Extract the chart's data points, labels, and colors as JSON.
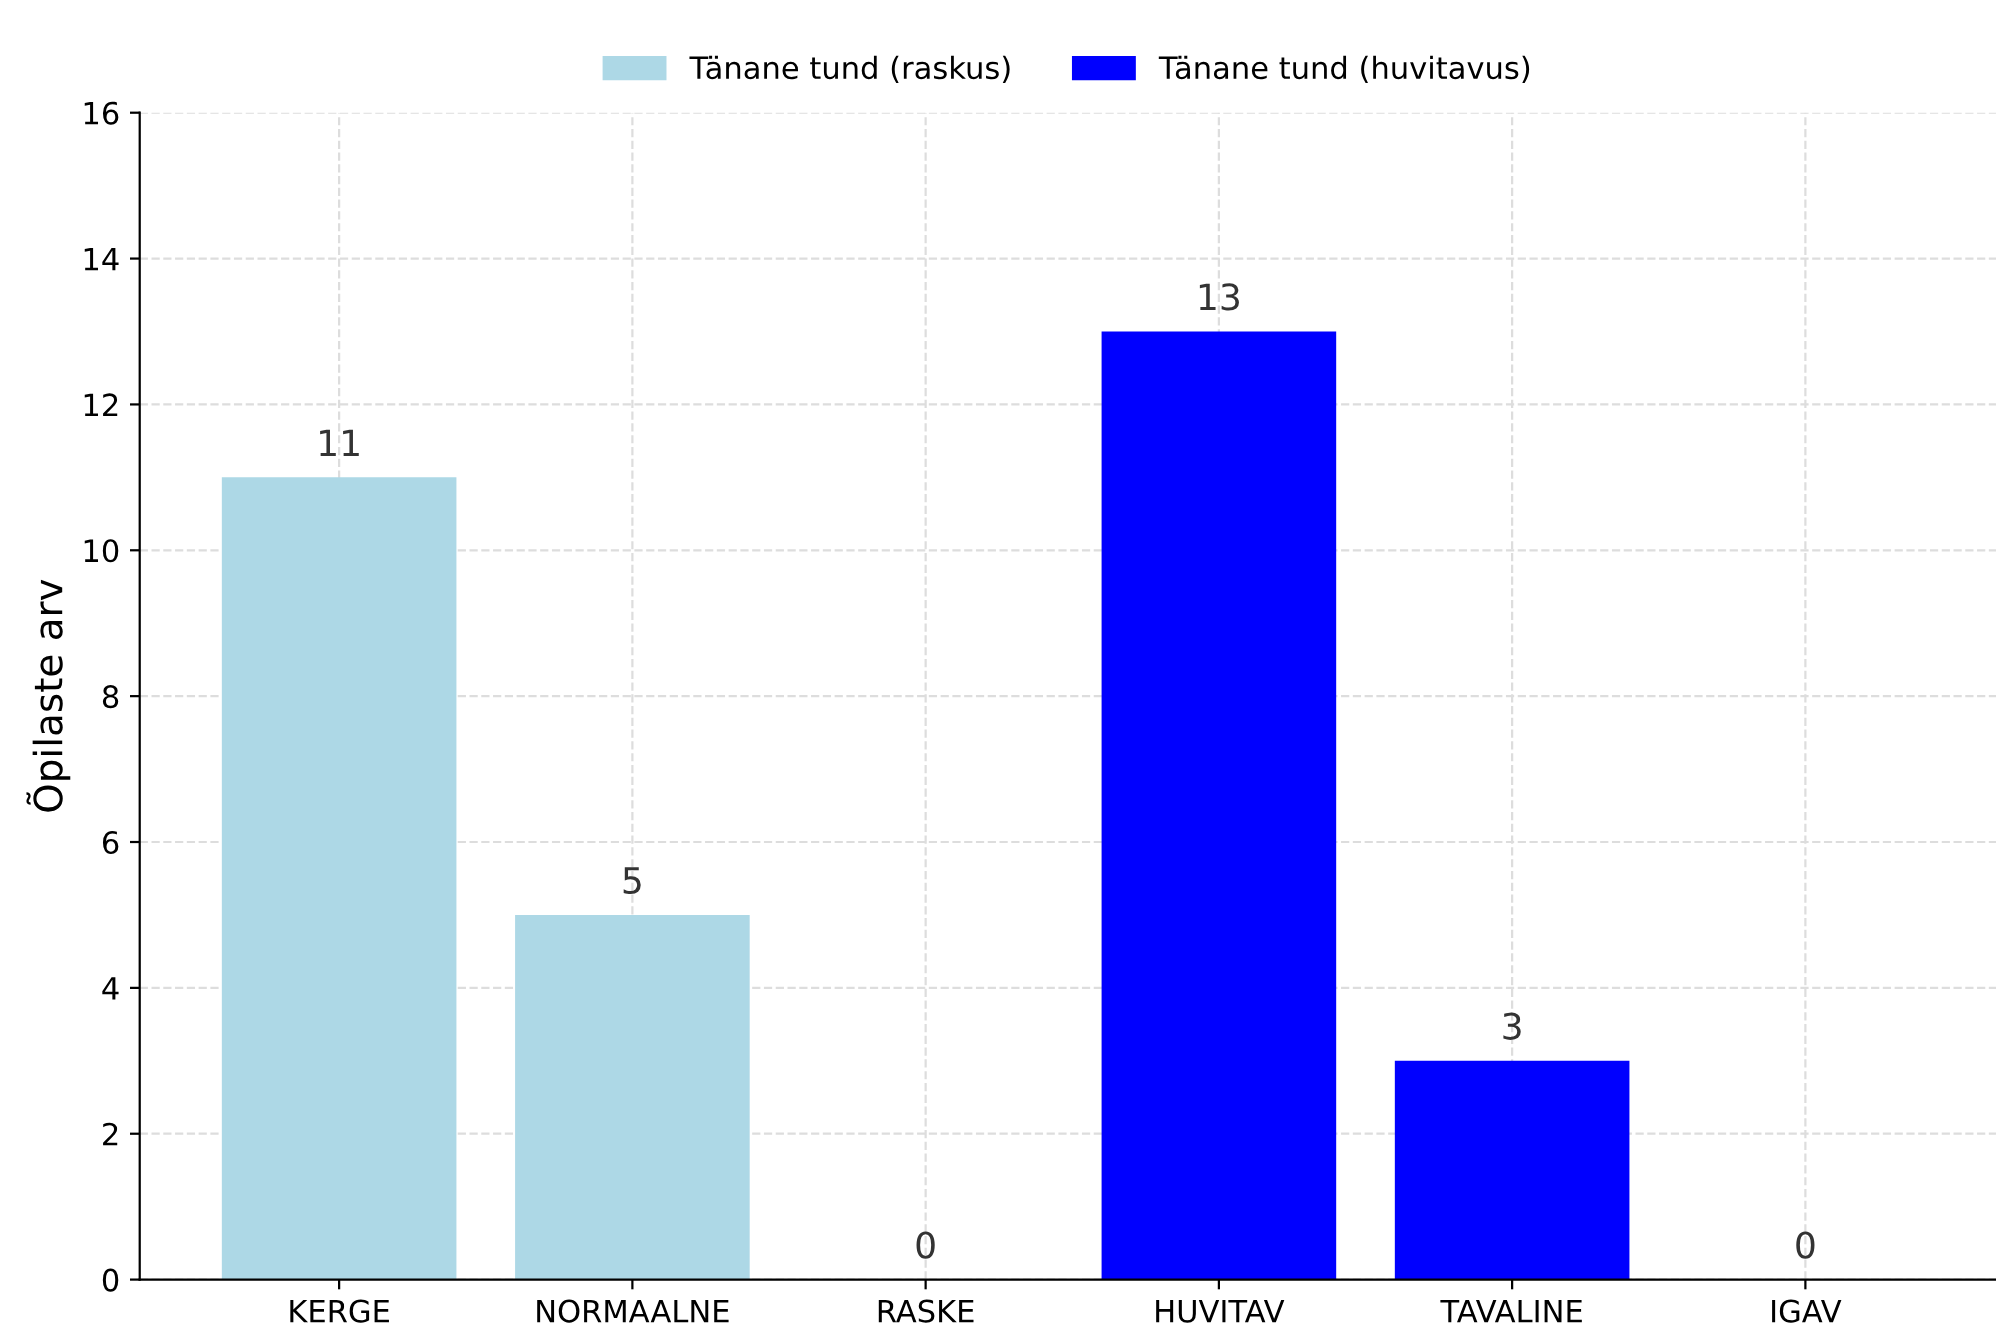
{
  "chart_data": {
    "type": "bar",
    "ylabel": "Õpilaste arv",
    "categories": [
      "KERGE",
      "NORMAALNE",
      "RASKE",
      "HUVITAV",
      "TAVALINE",
      "IGAV"
    ],
    "series": [
      {
        "name": "Tänane tund (raskus)",
        "color": "#add8e6",
        "values": [
          11,
          5,
          0,
          null,
          null,
          null
        ]
      },
      {
        "name": "Tänane tund (huvitavus)",
        "color": "#0000ff",
        "values": [
          null,
          null,
          null,
          13,
          3,
          0
        ]
      }
    ],
    "ylim": [
      0,
      16
    ],
    "yticks": [
      0,
      2,
      4,
      6,
      8,
      10,
      12,
      14,
      16
    ],
    "grid": true,
    "legend": "top",
    "data_labels": true
  }
}
